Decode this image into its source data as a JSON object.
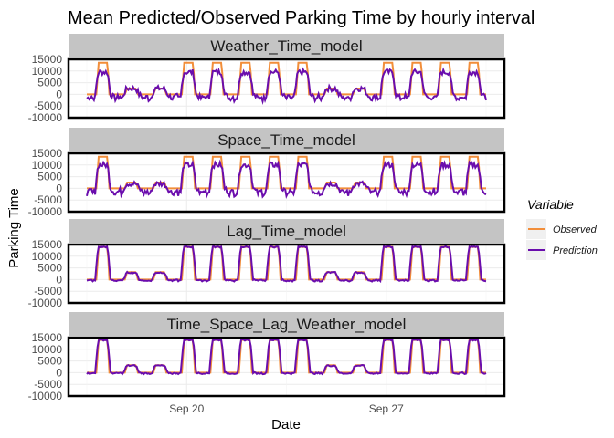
{
  "chart_data": {
    "type": "line",
    "title": "Mean Predicted/Observed Parking Time by hourly interval",
    "xlabel": "Date",
    "ylabel": "Parking Time",
    "x_ticks": [
      "Sep 20",
      "Sep 27"
    ],
    "y_ticks": [
      "15000",
      "10000",
      "5000",
      "0",
      "-5000",
      "-10000"
    ],
    "ylim": [
      -10000,
      15000
    ],
    "x_range_days": [
      0,
      14
    ],
    "legend": {
      "title": "Variable",
      "position": "right",
      "entries": [
        {
          "label": "Observed",
          "color": "#f28e3a"
        },
        {
          "label": "Prediction",
          "color": "#6a0dad"
        }
      ]
    },
    "grid": true,
    "facets": [
      {
        "name": "Weather_Time_model",
        "series": {
          "Observed": {
            "weekday_peak": 13500,
            "weekend_peak": 2500
          },
          "Prediction": {
            "weekday_peak": 9500,
            "weekend_peak": 2500,
            "trough": -5000,
            "noise": 1200
          }
        }
      },
      {
        "name": "Space_Time_model",
        "series": {
          "Observed": {
            "weekday_peak": 13500,
            "weekend_peak": 2500
          },
          "Prediction": {
            "weekday_peak": 10000,
            "weekend_peak": 2000,
            "trough": -6000,
            "noise": 1200
          }
        }
      },
      {
        "name": "Lag_Time_model",
        "series": {
          "Observed": {
            "weekday_peak": 14000,
            "weekend_peak": 3200
          },
          "Prediction": {
            "weekday_peak": 14000,
            "weekend_peak": 3000,
            "trough": -1500,
            "noise": 300
          }
        }
      },
      {
        "name": "Time_Space_Lag_Weather_model",
        "series": {
          "Observed": {
            "weekday_peak": 14000,
            "weekend_peak": 3200
          },
          "Prediction": {
            "weekday_peak": 14000,
            "weekend_peak": 3000,
            "trough": -1000,
            "noise": 300
          }
        }
      }
    ],
    "day_pattern": [
      "weekday",
      "weekend",
      "weekend",
      "weekday",
      "weekday",
      "weekday",
      "weekday",
      "weekday",
      "weekend",
      "weekend",
      "weekday",
      "weekday",
      "weekday",
      "weekday"
    ]
  }
}
